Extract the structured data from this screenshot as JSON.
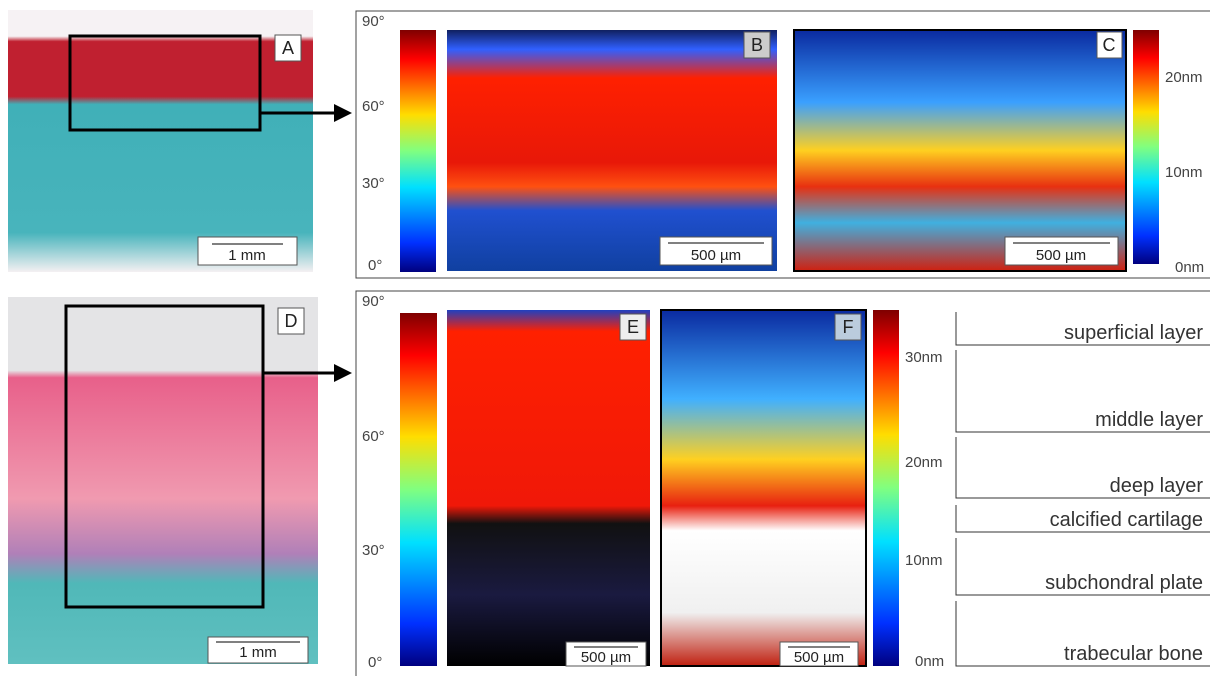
{
  "panels": [
    "A",
    "B",
    "C",
    "D",
    "E",
    "F"
  ],
  "scale_bars": {
    "A": "1 mm",
    "B": "500 µm",
    "C": "500 µm",
    "D": "1 mm",
    "E": "500 µm",
    "F": "500 µm"
  },
  "colorbars": [
    {
      "ticks": [
        "90°",
        "60°",
        "30°",
        "0°"
      ]
    },
    {
      "ticks": [
        "20nm",
        "10nm",
        "0nm"
      ]
    },
    {
      "ticks": [
        "90°",
        "60°",
        "30°",
        "0°"
      ]
    },
    {
      "ticks": [
        "30nm",
        "20nm",
        "10nm",
        "0nm"
      ]
    }
  ],
  "layers": [
    "superficial layer",
    "middle layer",
    "deep layer",
    "calcified cartilage",
    "subchondral plate",
    "trabecular bone"
  ]
}
